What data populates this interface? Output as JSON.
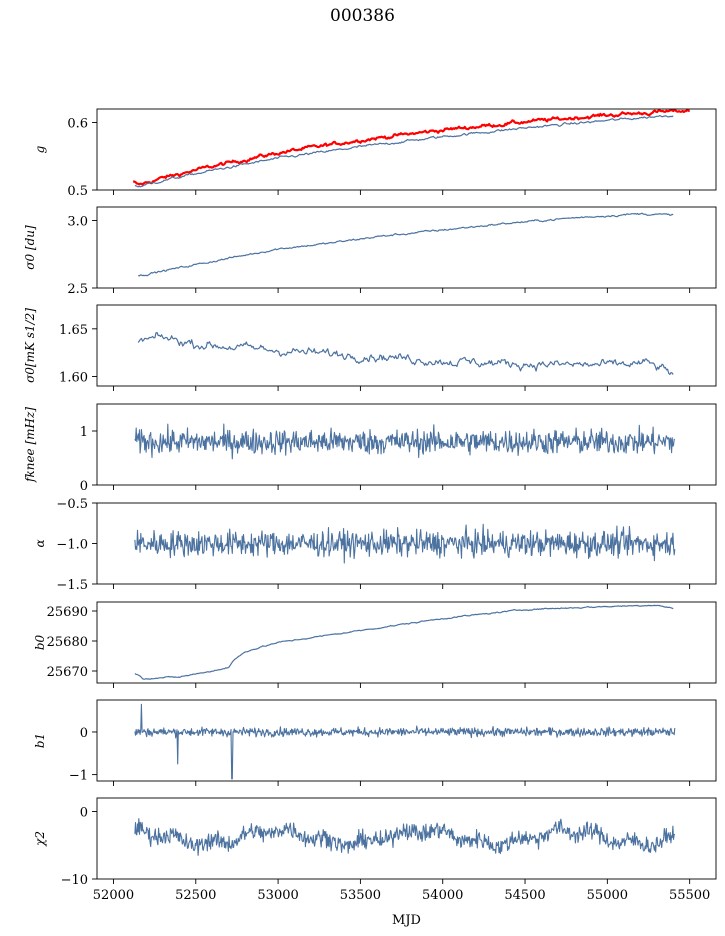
{
  "figure": {
    "title": "000386",
    "xlabel": "MJD"
  },
  "chart_data": {
    "type": "line",
    "title": "000386",
    "xlabel": "MJD",
    "xlim": [
      51900,
      55660
    ],
    "xticks": [
      52000,
      52500,
      53000,
      53500,
      54000,
      54500,
      55000,
      55500
    ],
    "series_color": "#4c72a0",
    "highlight_color": "#ff0000",
    "panels": [
      {
        "id": "g",
        "ylabel": "g",
        "ylim": [
          0.5,
          0.62
        ],
        "yticks": [
          {
            "v": 0.5,
            "label": "0.5"
          },
          {
            "v": 0.6,
            "label": "0.6"
          }
        ],
        "series": [
          {
            "kind": "trend",
            "color": "#ff0000",
            "width": 2.2,
            "noise": 0.0015,
            "points": [
              [
                52120,
                0.512
              ],
              [
                52150,
                0.507
              ],
              [
                52300,
                0.518
              ],
              [
                52600,
                0.535
              ],
              [
                53000,
                0.555
              ],
              [
                53500,
                0.574
              ],
              [
                54000,
                0.589
              ],
              [
                54500,
                0.601
              ],
              [
                55000,
                0.611
              ],
              [
                55500,
                0.618
              ]
            ]
          },
          {
            "kind": "trend",
            "color": "#4c72a0",
            "width": 1.2,
            "noise": 0.001,
            "points": [
              [
                52130,
                0.507
              ],
              [
                52150,
                0.505
              ],
              [
                52300,
                0.514
              ],
              [
                52600,
                0.529
              ],
              [
                53000,
                0.547
              ],
              [
                53500,
                0.564
              ],
              [
                54000,
                0.579
              ],
              [
                54500,
                0.592
              ],
              [
                55000,
                0.603
              ],
              [
                55400,
                0.611
              ]
            ]
          }
        ]
      },
      {
        "id": "sigma0-du",
        "ylabel": "σ0 [du]",
        "ylim": [
          2.5,
          3.1
        ],
        "yticks": [
          {
            "v": 2.5,
            "label": "2.5"
          },
          {
            "v": 3.0,
            "label": "3.0"
          }
        ],
        "series": [
          {
            "kind": "trend",
            "color": "#4c72a0",
            "width": 1.2,
            "noise": 0.004,
            "points": [
              [
                52150,
                2.59
              ],
              [
                52400,
                2.65
              ],
              [
                52700,
                2.72
              ],
              [
                53000,
                2.79
              ],
              [
                53300,
                2.83
              ],
              [
                53600,
                2.88
              ],
              [
                54000,
                2.93
              ],
              [
                54400,
                2.98
              ],
              [
                54800,
                3.02
              ],
              [
                55200,
                3.05
              ],
              [
                55400,
                3.04
              ]
            ]
          }
        ]
      },
      {
        "id": "sigma0-mk",
        "ylabel": "σ0[mK s1/2]",
        "ylim": [
          1.59,
          1.675
        ],
        "yticks": [
          {
            "v": 1.6,
            "label": "1.60"
          },
          {
            "v": 1.65,
            "label": "1.65"
          }
        ],
        "series": [
          {
            "kind": "trend",
            "color": "#4c72a0",
            "width": 1.2,
            "noise": 0.0025,
            "points": [
              [
                52150,
                1.637
              ],
              [
                52300,
                1.641
              ],
              [
                52500,
                1.634
              ],
              [
                52800,
                1.63
              ],
              [
                53100,
                1.626
              ],
              [
                53400,
                1.623
              ],
              [
                53700,
                1.62
              ],
              [
                54000,
                1.616
              ],
              [
                54500,
                1.613
              ],
              [
                55000,
                1.612
              ],
              [
                55250,
                1.614
              ],
              [
                55400,
                1.603
              ]
            ]
          }
        ]
      },
      {
        "id": "fknee",
        "ylabel": "fknee [mHz]",
        "ylim": [
          0,
          1.5
        ],
        "yticks": [
          {
            "v": 0,
            "label": "0"
          },
          {
            "v": 1,
            "label": "1"
          }
        ],
        "series": [
          {
            "kind": "noise",
            "color": "#4c72a0",
            "width": 1.1,
            "noise": 0.16,
            "mean": 0.8,
            "x0": 52130,
            "x1": 55410
          }
        ]
      },
      {
        "id": "alpha",
        "ylabel": "α",
        "ylim": [
          -1.5,
          -0.5
        ],
        "yticks": [
          {
            "v": -1.5,
            "label": "−1.5"
          },
          {
            "v": -1.0,
            "label": "−1.0"
          },
          {
            "v": -0.5,
            "label": "−0.5"
          }
        ],
        "series": [
          {
            "kind": "noise",
            "color": "#4c72a0",
            "width": 1.1,
            "noise": 0.11,
            "mean": -1.0,
            "x0": 52130,
            "x1": 55410
          }
        ]
      },
      {
        "id": "b0",
        "ylabel": "b0",
        "ylim": [
          25666,
          25693
        ],
        "yticks": [
          {
            "v": 25670,
            "label": "25670"
          },
          {
            "v": 25680,
            "label": "25680"
          },
          {
            "v": 25690,
            "label": "25690"
          }
        ],
        "series": [
          {
            "kind": "trend",
            "color": "#4c72a0",
            "width": 1.2,
            "noise": 0.12,
            "points": [
              [
                52130,
                25669.3
              ],
              [
                52180,
                25667.5
              ],
              [
                52400,
                25668
              ],
              [
                52600,
                25670
              ],
              [
                52700,
                25671.2
              ],
              [
                52730,
                25673.5
              ],
              [
                52800,
                25676.5
              ],
              [
                53000,
                25679.5
              ],
              [
                53500,
                25683.5
              ],
              [
                54000,
                25687.5
              ],
              [
                54500,
                25690.5
              ],
              [
                55000,
                25691.5
              ],
              [
                55300,
                25692
              ],
              [
                55400,
                25690.8
              ]
            ]
          }
        ]
      },
      {
        "id": "b1",
        "ylabel": "b1",
        "ylim": [
          -1.15,
          0.75
        ],
        "yticks": [
          {
            "v": -1,
            "label": "−1"
          },
          {
            "v": 0,
            "label": "0"
          }
        ],
        "series": [
          {
            "kind": "noise",
            "color": "#4c72a0",
            "width": 1.1,
            "noise": 0.07,
            "mean": 0.0,
            "x0": 52130,
            "x1": 55410,
            "spikes": [
              [
                52170,
                0.65
              ],
              [
                52390,
                -0.75
              ],
              [
                52720,
                -1.1
              ]
            ]
          }
        ]
      },
      {
        "id": "chi2",
        "ylabel": "χ2",
        "ylim": [
          -10,
          2
        ],
        "yticks": [
          {
            "v": -10,
            "label": "−10"
          },
          {
            "v": 0,
            "label": "0"
          }
        ],
        "series": [
          {
            "kind": "noise",
            "color": "#4c72a0",
            "width": 1.1,
            "noise": 0.9,
            "mean": -3.8,
            "x0": 52130,
            "x1": 55410,
            "wave": 1.2
          }
        ]
      }
    ]
  }
}
